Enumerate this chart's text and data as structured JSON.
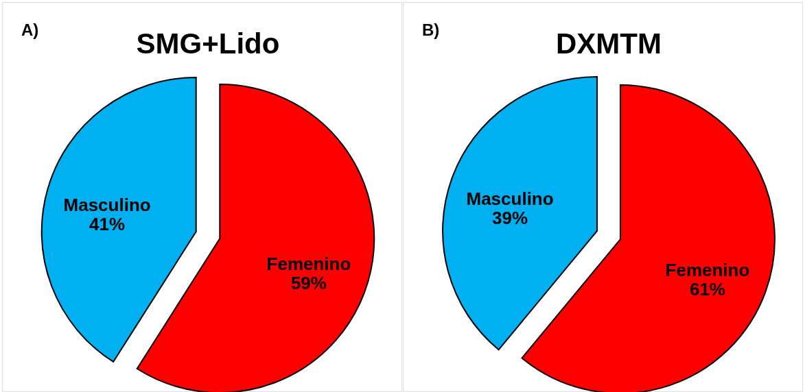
{
  "chart_data": [
    {
      "type": "pie",
      "title": "SMG+Lido",
      "annotations": [
        "A)"
      ],
      "categories": [
        "Femenino",
        "Masculino"
      ],
      "values": [
        59,
        41
      ],
      "value_labels": [
        "59%",
        "41%"
      ],
      "colors": [
        "#ff0000",
        "#00b0f0"
      ],
      "legend": false
    },
    {
      "type": "pie",
      "title": "DXMTM",
      "annotations": [
        "B)"
      ],
      "categories": [
        "Femenino",
        "Masculino"
      ],
      "values": [
        61,
        39
      ],
      "value_labels": [
        "61%",
        "39%"
      ],
      "colors": [
        "#ff0000",
        "#00b0f0"
      ],
      "legend": false
    }
  ]
}
